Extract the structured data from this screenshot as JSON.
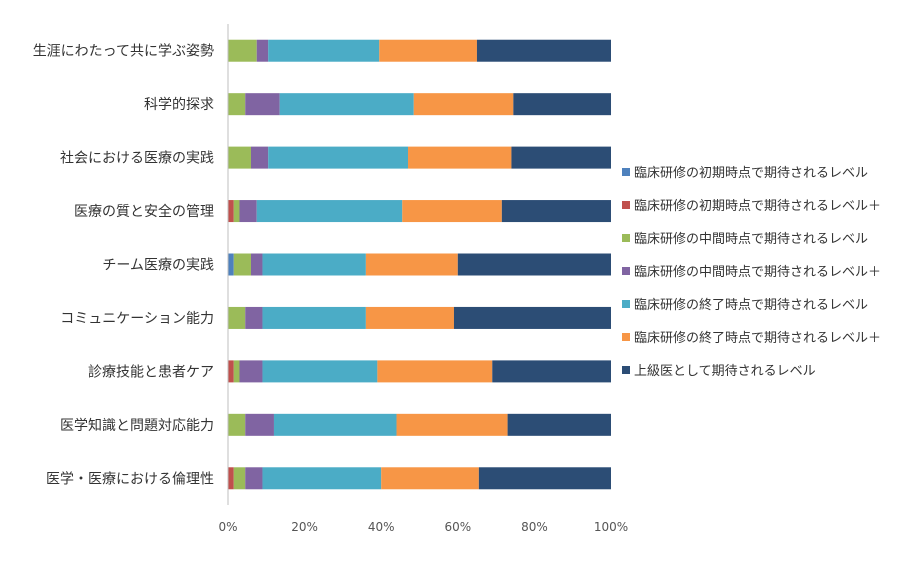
{
  "chart_data": {
    "type": "bar",
    "orientation": "horizontal",
    "stacked": "percent",
    "categories": [
      "生涯にわたって共に学ぶ姿勢",
      "科学的探求",
      "社会における医療の実践",
      "医療の質と安全の管理",
      "チーム医療の実践",
      "コミュニケーション能力",
      "診療技能と患者ケア",
      "医学知識と問題対応能力",
      "医学・医療における倫理性"
    ],
    "series": [
      {
        "name": "臨床研修の初期時点で期待されるレベル",
        "color": "#4E81BD",
        "values": [
          0.0,
          0.0,
          0.0,
          0.0,
          1.5,
          0.0,
          0.0,
          0.0,
          0.0
        ]
      },
      {
        "name": "臨床研修の初期時点で期待されるレベル＋",
        "color": "#C0504D",
        "values": [
          0.0,
          0.0,
          0.0,
          1.5,
          0.0,
          0.0,
          1.5,
          0.0,
          1.5
        ]
      },
      {
        "name": "臨床研修の中間時点で期待されるレベル",
        "color": "#9BBB59",
        "values": [
          7.5,
          4.5,
          6.0,
          1.5,
          4.5,
          4.5,
          1.5,
          4.5,
          3.0
        ]
      },
      {
        "name": "臨床研修の中間時点で期待されるレベル＋",
        "color": "#8064A2",
        "values": [
          3.0,
          9.0,
          4.5,
          4.5,
          3.0,
          4.5,
          6.0,
          7.5,
          4.5
        ]
      },
      {
        "name": "臨床研修の終了時点で期待されるレベル",
        "color": "#4BACC6",
        "values": [
          29.0,
          35.0,
          36.5,
          38.0,
          27.0,
          27.0,
          30.0,
          32.0,
          31.0
        ]
      },
      {
        "name": "臨床研修の終了時点で期待されるレベル＋",
        "color": "#F79646",
        "values": [
          25.5,
          26.0,
          27.0,
          26.0,
          24.0,
          23.0,
          30.0,
          29.0,
          25.5
        ]
      },
      {
        "name": "上級医として期待されるレベル",
        "color": "#2C4D75",
        "values": [
          35.0,
          25.5,
          26.0,
          28.5,
          40.0,
          41.0,
          31.0,
          27.0,
          34.5
        ]
      }
    ],
    "x_ticks": [
      "0%",
      "20%",
      "40%",
      "60%",
      "80%",
      "100%"
    ],
    "xlim": [
      0,
      100
    ],
    "grid": false,
    "legend_position": "right"
  }
}
